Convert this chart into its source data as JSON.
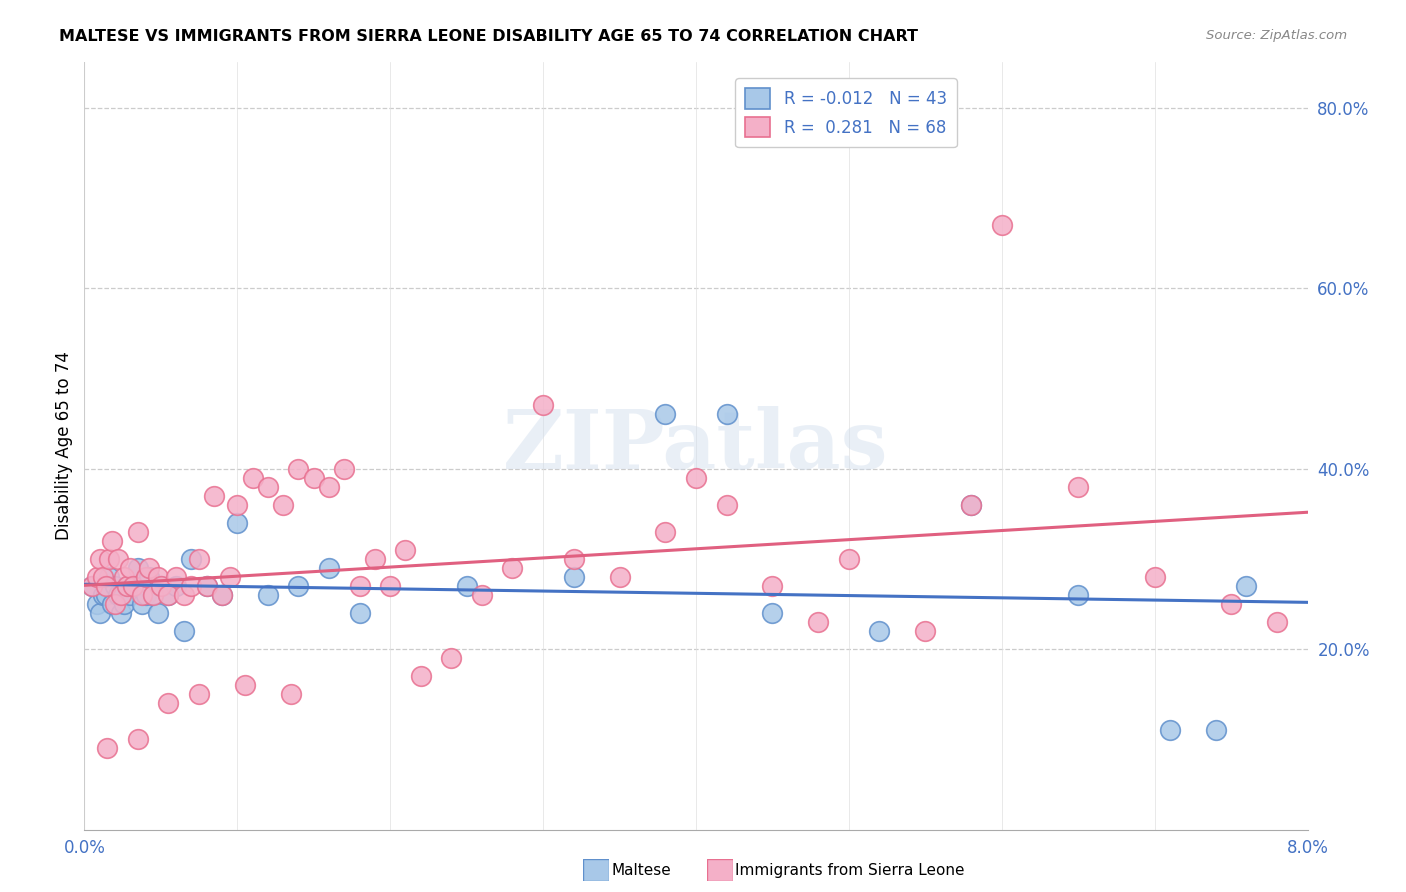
{
  "title": "MALTESE VS IMMIGRANTS FROM SIERRA LEONE DISABILITY AGE 65 TO 74 CORRELATION CHART",
  "source": "Source: ZipAtlas.com",
  "ylabel": "Disability Age 65 to 74",
  "xlim": [
    0.0,
    8.0
  ],
  "ylim": [
    0.0,
    85.0
  ],
  "yticks": [
    20.0,
    40.0,
    60.0,
    80.0
  ],
  "xticks": [
    0.0,
    1.0,
    2.0,
    3.0,
    4.0,
    5.0,
    6.0,
    7.0,
    8.0
  ],
  "series1_name": "Maltese",
  "series2_name": "Immigrants from Sierra Leone",
  "series1_R": "-0.012",
  "series1_N": "43",
  "series2_R": "0.281",
  "series2_N": "68",
  "series1_color": "#a8c8e8",
  "series2_color": "#f4b0c8",
  "series1_edge_color": "#6090cc",
  "series2_edge_color": "#e87090",
  "series1_line_color": "#4472c4",
  "series2_line_color": "#e06080",
  "tick_color": "#4472c4",
  "background_color": "#ffffff",
  "watermark_text": "ZIPatlas",
  "series1_x": [
    0.05,
    0.08,
    0.1,
    0.12,
    0.14,
    0.16,
    0.18,
    0.2,
    0.22,
    0.24,
    0.26,
    0.28,
    0.3,
    0.32,
    0.35,
    0.38,
    0.4,
    0.42,
    0.45,
    0.48,
    0.5,
    0.55,
    0.6,
    0.65,
    0.7,
    0.8,
    0.9,
    1.0,
    1.2,
    1.4,
    1.6,
    1.8,
    2.5,
    3.2,
    3.8,
    4.2,
    4.5,
    5.2,
    5.8,
    6.5,
    7.1,
    7.4,
    7.6
  ],
  "series1_y": [
    27,
    25,
    24,
    26,
    26,
    28,
    25,
    27,
    26,
    24,
    25,
    27,
    26,
    27,
    29,
    25,
    26,
    28,
    26,
    24,
    27,
    26,
    27,
    22,
    30,
    27,
    26,
    34,
    26,
    27,
    29,
    24,
    27,
    28,
    46,
    46,
    24,
    22,
    36,
    26,
    11,
    11,
    27
  ],
  "series2_x": [
    0.05,
    0.08,
    0.1,
    0.12,
    0.14,
    0.16,
    0.18,
    0.2,
    0.22,
    0.24,
    0.26,
    0.28,
    0.3,
    0.32,
    0.35,
    0.38,
    0.4,
    0.42,
    0.45,
    0.48,
    0.5,
    0.55,
    0.6,
    0.65,
    0.7,
    0.75,
    0.8,
    0.85,
    0.9,
    0.95,
    1.0,
    1.1,
    1.2,
    1.3,
    1.4,
    1.5,
    1.6,
    1.7,
    1.8,
    1.9,
    2.0,
    2.1,
    2.2,
    2.4,
    2.6,
    2.8,
    3.0,
    3.2,
    3.5,
    3.8,
    4.0,
    4.2,
    4.5,
    4.8,
    5.0,
    5.5,
    5.8,
    6.0,
    6.5,
    7.0,
    7.5,
    7.8,
    0.15,
    0.35,
    0.55,
    0.75,
    1.05,
    1.35
  ],
  "series2_y": [
    27,
    28,
    30,
    28,
    27,
    30,
    32,
    25,
    30,
    26,
    28,
    27,
    29,
    27,
    33,
    26,
    28,
    29,
    26,
    28,
    27,
    26,
    28,
    26,
    27,
    30,
    27,
    37,
    26,
    28,
    36,
    39,
    38,
    36,
    40,
    39,
    38,
    40,
    27,
    30,
    27,
    31,
    17,
    19,
    26,
    29,
    47,
    30,
    28,
    33,
    39,
    36,
    27,
    23,
    30,
    22,
    36,
    67,
    38,
    28,
    25,
    23,
    9,
    10,
    14,
    15,
    16,
    15
  ]
}
